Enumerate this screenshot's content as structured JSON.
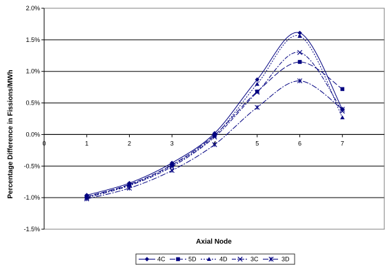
{
  "chart_data": {
    "type": "line",
    "title": "",
    "xlabel": "Axial Node",
    "ylabel": "Percentage Difference in Fissions/MWh",
    "x": [
      1,
      2,
      3,
      4,
      5,
      6,
      7
    ],
    "xlim": [
      0,
      8
    ],
    "x_ticks": [
      "0",
      "1",
      "2",
      "3",
      "4",
      "5",
      "6",
      "7"
    ],
    "ylim": [
      -1.5,
      2.0
    ],
    "y_ticks": [
      -1.5,
      -1.0,
      -0.5,
      0.0,
      0.5,
      1.0,
      1.5,
      2.0
    ],
    "y_tick_labels": [
      "-1.5%",
      "-1.0%",
      "-0.5%",
      "0.0%",
      "0.5%",
      "1.0%",
      "1.5%",
      "2.0%"
    ],
    "grid": "horizontal major gridlines",
    "legend_position": "bottom",
    "series": [
      {
        "name": "4C",
        "marker": "diamond",
        "dash": "solid",
        "color": "#000080",
        "values": [
          -0.96,
          -0.77,
          -0.45,
          0.02,
          0.87,
          1.61,
          0.4
        ]
      },
      {
        "name": "5D",
        "marker": "square",
        "dash": "8,3",
        "color": "#000080",
        "values": [
          -0.98,
          -0.79,
          -0.48,
          -0.01,
          0.68,
          1.15,
          0.72
        ]
      },
      {
        "name": "4D",
        "marker": "triangle",
        "dash": "2,2",
        "color": "#000080",
        "values": [
          -0.99,
          -0.8,
          -0.49,
          -0.02,
          0.8,
          1.56,
          0.27
        ]
      },
      {
        "name": "3C",
        "marker": "x",
        "dash": "6,2,2,2",
        "color": "#000080",
        "values": [
          -1.0,
          -0.81,
          -0.51,
          -0.04,
          0.67,
          1.3,
          0.37
        ]
      },
      {
        "name": "3D",
        "marker": "star",
        "dash": "8,2,2,2",
        "color": "#000080",
        "values": [
          -1.02,
          -0.85,
          -0.57,
          -0.16,
          0.43,
          0.85,
          0.4
        ]
      }
    ]
  }
}
